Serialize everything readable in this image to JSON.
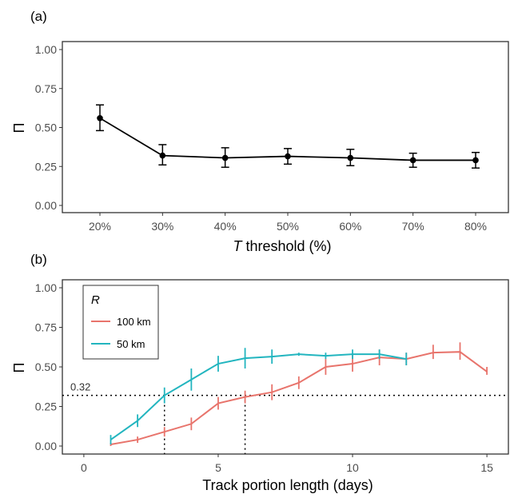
{
  "chart_data": [
    {
      "panel_label": "(a)",
      "type": "line",
      "categories": [
        "20%",
        "30%",
        "40%",
        "50%",
        "60%",
        "70%",
        "80%"
      ],
      "series": [
        {
          "values": [
            0.56,
            0.32,
            0.305,
            0.315,
            0.305,
            0.29,
            0.29
          ],
          "err_low": [
            0.48,
            0.26,
            0.245,
            0.265,
            0.255,
            0.245,
            0.24
          ],
          "err_high": [
            0.645,
            0.39,
            0.37,
            0.365,
            0.36,
            0.335,
            0.34
          ],
          "color": "#000000"
        }
      ],
      "ylabel": "Π",
      "xlabel_italic": "T",
      "xlabel_rest": " threshold (%)",
      "ylim": [
        0,
        1
      ],
      "yticks": [
        "0.00",
        "0.25",
        "0.50",
        "0.75",
        "1.00"
      ],
      "grid": false
    },
    {
      "panel_label": "(b)",
      "type": "line",
      "x_ticks": [
        "0",
        "5",
        "10",
        "15"
      ],
      "xlim": [
        -0.8,
        15.8
      ],
      "ylim": [
        0,
        1
      ],
      "yticks": [
        "0.00",
        "0.25",
        "0.50",
        "0.75",
        "1.00"
      ],
      "ylabel": "Π",
      "xlabel": "Track portion length (days)",
      "legend": {
        "title": "R",
        "placement": "top-left"
      },
      "series": [
        {
          "name": "100 km",
          "color": "#e8746c",
          "x": [
            1,
            2,
            3,
            4,
            5,
            6,
            7,
            8,
            9,
            10,
            11,
            12,
            13,
            14,
            15
          ],
          "values": [
            0.01,
            0.04,
            0.09,
            0.14,
            0.27,
            0.31,
            0.34,
            0.4,
            0.5,
            0.52,
            0.56,
            0.55,
            0.59,
            0.595,
            0.47
          ],
          "err_low": [
            0.0,
            0.02,
            0.06,
            0.1,
            0.23,
            0.27,
            0.29,
            0.36,
            0.45,
            0.47,
            0.51,
            0.51,
            0.55,
            0.545,
            0.45
          ],
          "err_high": [
            0.02,
            0.06,
            0.12,
            0.18,
            0.31,
            0.35,
            0.39,
            0.44,
            0.55,
            0.58,
            0.61,
            0.59,
            0.64,
            0.655,
            0.5
          ]
        },
        {
          "name": "50 km",
          "color": "#22b5bf",
          "x": [
            1,
            2,
            3,
            4,
            5,
            6,
            7,
            8,
            9,
            10,
            11,
            12
          ],
          "values": [
            0.04,
            0.16,
            0.32,
            0.42,
            0.52,
            0.555,
            0.565,
            0.58,
            0.57,
            0.58,
            0.58,
            0.55
          ],
          "err_low": [
            0.01,
            0.12,
            0.27,
            0.35,
            0.47,
            0.49,
            0.52,
            0.57,
            0.55,
            0.55,
            0.55,
            0.51
          ],
          "err_high": [
            0.07,
            0.2,
            0.37,
            0.49,
            0.57,
            0.62,
            0.61,
            0.59,
            0.59,
            0.61,
            0.61,
            0.59
          ]
        }
      ],
      "reference_line": {
        "y": 0.32,
        "label": "0.32"
      },
      "reference_drops": [
        3,
        6
      ],
      "grid": false
    }
  ]
}
